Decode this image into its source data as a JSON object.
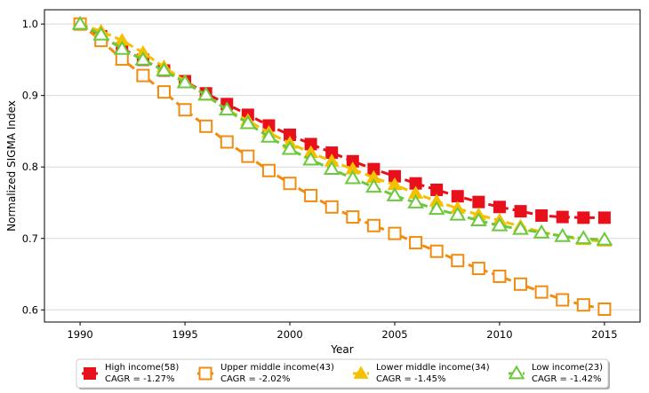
{
  "chart_data": {
    "type": "line",
    "xlabel": "Year",
    "ylabel": "Normalized SIGMA Index",
    "xlim": [
      1988.3,
      2016.7
    ],
    "ylim": [
      0.583,
      1.02
    ],
    "xticks": [
      1990,
      1995,
      2000,
      2005,
      2010,
      2015
    ],
    "yticks": [
      0.6,
      0.7,
      0.8,
      0.9,
      1.0
    ],
    "ytick_labels": [
      "0.6",
      "0.7",
      "0.8",
      "0.9",
      "1.0"
    ],
    "grid": "horizontal",
    "legend_position": "bottom",
    "x": [
      1990,
      1991,
      1992,
      1993,
      1994,
      1995,
      1996,
      1997,
      1998,
      1999,
      2000,
      2001,
      2002,
      2003,
      2004,
      2005,
      2006,
      2007,
      2008,
      2009,
      2010,
      2011,
      2012,
      2013,
      2014,
      2015
    ],
    "series": [
      {
        "name": "High income(58)",
        "cagr": "CAGR = -1.27%",
        "color": "#e8101a",
        "marker": "square-filled",
        "values": [
          1.0,
          0.983,
          0.966,
          0.95,
          0.935,
          0.92,
          0.903,
          0.888,
          0.873,
          0.858,
          0.845,
          0.832,
          0.82,
          0.808,
          0.797,
          0.787,
          0.777,
          0.768,
          0.759,
          0.751,
          0.744,
          0.738,
          0.732,
          0.73,
          0.729,
          0.729
        ]
      },
      {
        "name": "Upper middle income(43)",
        "cagr": "CAGR = -2.02%",
        "color": "#f08c10",
        "marker": "square-open",
        "values": [
          1.0,
          0.977,
          0.951,
          0.928,
          0.905,
          0.88,
          0.857,
          0.835,
          0.815,
          0.795,
          0.777,
          0.76,
          0.744,
          0.73,
          0.718,
          0.707,
          0.694,
          0.682,
          0.669,
          0.658,
          0.647,
          0.636,
          0.625,
          0.614,
          0.607,
          0.601
        ]
      },
      {
        "name": "Lower middle income(34)",
        "cagr": "CAGR = -1.45%",
        "color": "#f5c000",
        "marker": "triangle-filled",
        "values": [
          1.0,
          0.99,
          0.977,
          0.96,
          0.94,
          0.92,
          0.9,
          0.88,
          0.865,
          0.848,
          0.833,
          0.82,
          0.808,
          0.797,
          0.785,
          0.775,
          0.763,
          0.752,
          0.742,
          0.733,
          0.725,
          0.717,
          0.709,
          0.703,
          0.698,
          0.696
        ]
      },
      {
        "name": "Low income(23)",
        "cagr": "CAGR = -1.42%",
        "color": "#6cc83c",
        "marker": "triangle-open",
        "values": [
          1.0,
          0.985,
          0.965,
          0.95,
          0.935,
          0.918,
          0.901,
          0.88,
          0.861,
          0.842,
          0.825,
          0.81,
          0.797,
          0.784,
          0.772,
          0.76,
          0.75,
          0.741,
          0.733,
          0.725,
          0.718,
          0.713,
          0.708,
          0.703,
          0.7,
          0.698
        ]
      }
    ]
  }
}
